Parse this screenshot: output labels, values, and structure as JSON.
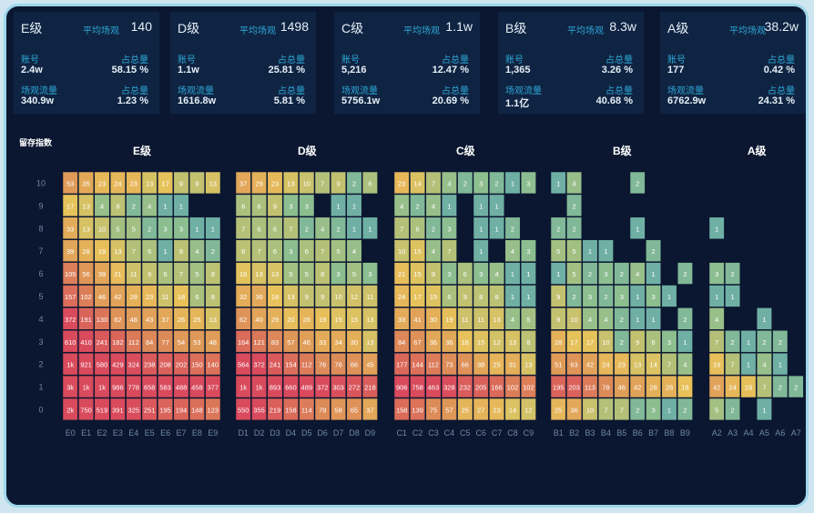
{
  "summary": {
    "avg_label": "平均场观",
    "count_label": "账号",
    "share_label": "占总量",
    "flow_label": "场观流量",
    "cards": [
      {
        "level": "E级",
        "avg": "140",
        "count": "2.4w",
        "count_share": "58.15 %",
        "flow": "340.9w",
        "flow_share": "1.23 %"
      },
      {
        "level": "D级",
        "avg": "1498",
        "count": "1.1w",
        "count_share": "25.81 %",
        "flow": "1616.8w",
        "flow_share": "5.81 %"
      },
      {
        "level": "C级",
        "avg": "1.1w",
        "count": "5,216",
        "count_share": "12.47 %",
        "flow": "5756.1w",
        "flow_share": "20.69 %"
      },
      {
        "level": "B级",
        "avg": "8.3w",
        "count": "1,365",
        "count_share": "3.26 %",
        "flow": "1.1亿",
        "flow_share": "40.68 %"
      },
      {
        "level": "A级",
        "avg": "38.2w",
        "count": "177",
        "count_share": "0.42 %",
        "flow": "6762.9w",
        "flow_share": "24.31 %"
      }
    ]
  },
  "heatmap": {
    "y_axis_title": "留存指数",
    "y_ticks": [
      "10",
      "9",
      "8",
      "7",
      "6",
      "5",
      "4",
      "3",
      "2",
      "1",
      "0"
    ],
    "colors": {
      "high": "#d94a5c",
      "mid_high": "#dc8a58",
      "mid": "#e8c25a",
      "mid_low": "#8fbf8e",
      "low": "#55a3b8",
      "text": "#ffffff"
    },
    "chart_data": {
      "type": "heatmap",
      "ylabel": "留存指数",
      "panels": [
        {
          "title": "E级",
          "columns": [
            "E0",
            "E1",
            "E2",
            "E3",
            "E4",
            "E5",
            "E6",
            "E7",
            "E8",
            "E9"
          ],
          "rows": [
            [
              "53",
              "35",
              "23",
              "24",
              "23",
              "13",
              "17",
              "9",
              "9",
              "13"
            ],
            [
              "17",
              "13",
              "4",
              "8",
              "2",
              "4",
              "1",
              "1",
              "",
              ""
            ],
            [
              "33",
              "13",
              "10",
              "5",
              "5",
              "2",
              "3",
              "3",
              "1",
              "1"
            ],
            [
              "39",
              "28",
              "19",
              "13",
              "7",
              "6",
              "1",
              "8",
              "4",
              "2"
            ],
            [
              "105",
              "56",
              "39",
              "21",
              "11",
              "9",
              "6",
              "7",
              "5",
              "8"
            ],
            [
              "157",
              "102",
              "46",
              "42",
              "28",
              "23",
              "11",
              "18",
              "6",
              "8"
            ],
            [
              "372",
              "191",
              "130",
              "62",
              "48",
              "43",
              "37",
              "26",
              "25",
              "13"
            ],
            [
              "610",
              "410",
              "241",
              "182",
              "112",
              "84",
              "77",
              "54",
              "53",
              "48"
            ],
            [
              "1k",
              "921",
              "580",
              "429",
              "324",
              "238",
              "208",
              "202",
              "150",
              "140"
            ],
            [
              "3k",
              "1k",
              "1k",
              "986",
              "778",
              "658",
              "583",
              "488",
              "458",
              "377"
            ],
            [
              "2k",
              "750",
              "519",
              "391",
              "325",
              "251",
              "195",
              "194",
              "148",
              "123"
            ]
          ]
        },
        {
          "title": "D级",
          "columns": [
            "D1",
            "D2",
            "D3",
            "D4",
            "D5",
            "D6",
            "D7",
            "D8",
            "D9"
          ],
          "rows": [
            [
              "37",
              "29",
              "23",
              "13",
              "10",
              "7",
              "9",
              "2",
              "6"
            ],
            [
              "6",
              "6",
              "9",
              "3",
              "3",
              "",
              "1",
              "1",
              ""
            ],
            [
              "7",
              "6",
              "6",
              "7",
              "2",
              "4",
              "2",
              "1",
              "1"
            ],
            [
              "8",
              "7",
              "6",
              "3",
              "6",
              "7",
              "5",
              "4",
              ""
            ],
            [
              "16",
              "13",
              "13",
              "5",
              "5",
              "8",
              "3",
              "5",
              "3"
            ],
            [
              "32",
              "36",
              "18",
              "13",
              "9",
              "9",
              "10",
              "12",
              "11"
            ],
            [
              "62",
              "40",
              "29",
              "20",
              "26",
              "19",
              "15",
              "15",
              "13"
            ],
            [
              "164",
              "121",
              "83",
              "57",
              "46",
              "33",
              "34",
              "30",
              "13"
            ],
            [
              "564",
              "372",
              "241",
              "154",
              "112",
              "76",
              "76",
              "66",
              "45"
            ],
            [
              "1k",
              "1k",
              "893",
              "660",
              "489",
              "372",
              "303",
              "272",
              "218"
            ],
            [
              "550",
              "355",
              "219",
              "158",
              "114",
              "79",
              "58",
              "65",
              "37"
            ]
          ]
        },
        {
          "title": "C级",
          "columns": [
            "C1",
            "C2",
            "C3",
            "C4",
            "C5",
            "C6",
            "C7",
            "C8",
            "C9"
          ],
          "rows": [
            [
              "23",
              "14",
              "7",
              "4",
              "2",
              "3",
              "2",
              "1",
              "3"
            ],
            [
              "4",
              "2",
              "4",
              "1",
              "",
              "1",
              "1",
              "",
              ""
            ],
            [
              "7",
              "6",
              "2",
              "3",
              "",
              "1",
              "1",
              "2",
              ""
            ],
            [
              "10",
              "15",
              "4",
              "7",
              "",
              "1",
              "",
              "4",
              "3"
            ],
            [
              "21",
              "15",
              "9",
              "3",
              "6",
              "3",
              "4",
              "1",
              "1"
            ],
            [
              "24",
              "17",
              "15",
              "6",
              "9",
              "8",
              "8",
              "1",
              "1"
            ],
            [
              "33",
              "41",
              "30",
              "19",
              "11",
              "11",
              "13",
              "4",
              "5"
            ],
            [
              "84",
              "67",
              "36",
              "36",
              "18",
              "15",
              "12",
              "13",
              "8"
            ],
            [
              "177",
              "144",
              "112",
              "73",
              "66",
              "38",
              "25",
              "31",
              "13"
            ],
            [
              "906",
              "758",
              "463",
              "328",
              "232",
              "205",
              "166",
              "102",
              "102"
            ],
            [
              "158",
              "139",
              "75",
              "57",
              "25",
              "27",
              "23",
              "14",
              "12"
            ]
          ]
        },
        {
          "title": "B级",
          "columns": [
            "B1",
            "B2",
            "B3",
            "B4",
            "B5",
            "B6",
            "B7",
            "B8",
            "B9"
          ],
          "rows": [
            [
              "1",
              "4",
              "",
              "",
              "",
              "2",
              "",
              "",
              ""
            ],
            [
              "",
              "2",
              "",
              "",
              "",
              "",
              "",
              "",
              ""
            ],
            [
              "2",
              "2",
              "",
              "",
              "",
              "1",
              "",
              "",
              ""
            ],
            [
              "5",
              "5",
              "1",
              "1",
              "",
              "",
              "2",
              "",
              ""
            ],
            [
              "1",
              "5",
              "2",
              "3",
              "2",
              "4",
              "1",
              "",
              "2"
            ],
            [
              "9",
              "2",
              "3",
              "2",
              "3",
              "1",
              "3",
              "1",
              ""
            ],
            [
              "9",
              "10",
              "4",
              "4",
              "2",
              "1",
              "1",
              "",
              "2"
            ],
            [
              "28",
              "17",
              "17",
              "10",
              "2",
              "9",
              "6",
              "3",
              "1"
            ],
            [
              "51",
              "63",
              "42",
              "24",
              "23",
              "13",
              "14",
              "7",
              "4"
            ],
            [
              "195",
              "203",
              "113",
              "78",
              "46",
              "42",
              "28",
              "28",
              "18"
            ],
            [
              "25",
              "36",
              "10",
              "7",
              "7",
              "2",
              "3",
              "1",
              "2"
            ]
          ]
        },
        {
          "title": "A级",
          "columns": [
            "A2",
            "A3",
            "A4",
            "A5",
            "A6",
            "A7"
          ],
          "rows": [
            [
              "",
              "",
              "",
              "",
              "",
              ""
            ],
            [
              "",
              "",
              "",
              "",
              "",
              ""
            ],
            [
              "1",
              "",
              "",
              "",
              "",
              ""
            ],
            [
              "",
              "",
              "",
              "",
              "",
              ""
            ],
            [
              "3",
              "2",
              "",
              "",
              "",
              ""
            ],
            [
              "1",
              "1",
              "",
              "",
              "",
              ""
            ],
            [
              "4",
              "",
              "",
              "1",
              "",
              ""
            ],
            [
              "7",
              "2",
              "1",
              "2",
              "2",
              ""
            ],
            [
              "19",
              "7",
              "1",
              "4",
              "1",
              ""
            ],
            [
              "42",
              "24",
              "19",
              "7",
              "2",
              "2"
            ],
            [
              "5",
              "2",
              "",
              "1",
              "",
              ""
            ]
          ]
        }
      ]
    }
  }
}
